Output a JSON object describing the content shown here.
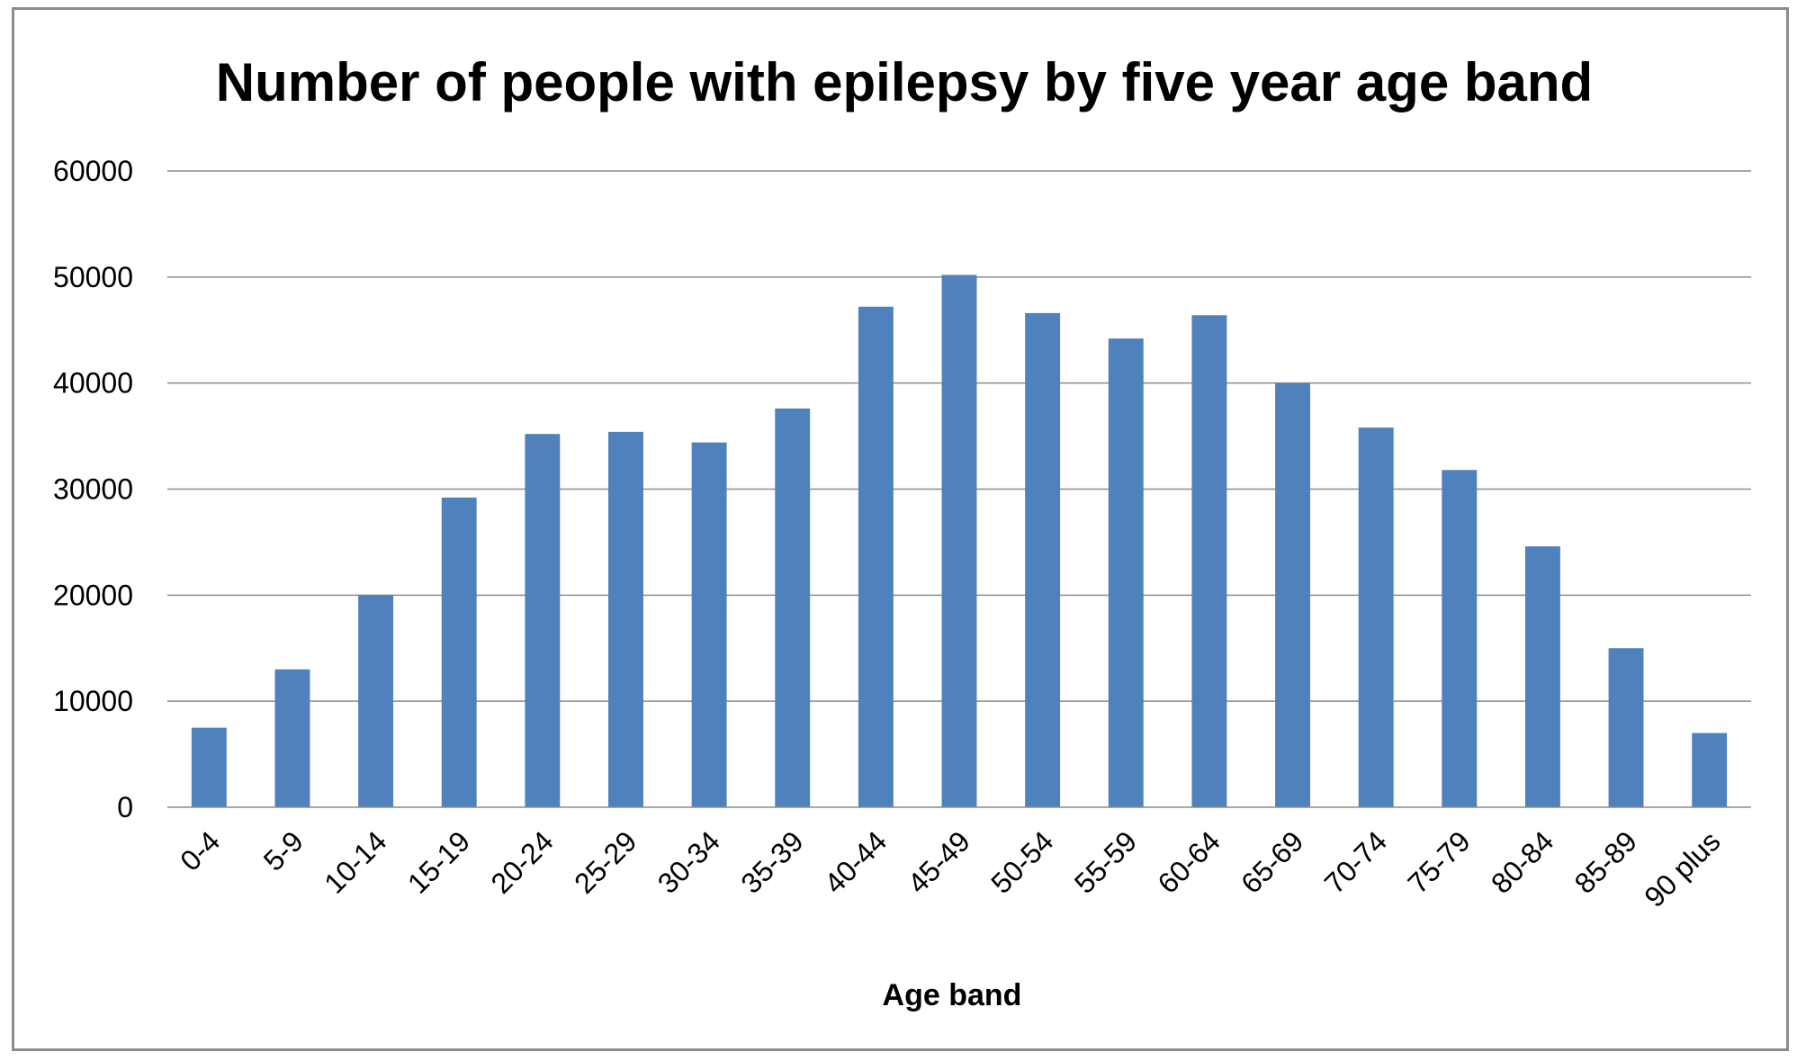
{
  "chart_data": {
    "type": "bar",
    "title": "Number of people with epilepsy by five year age band",
    "xlabel": "Age band",
    "ylabel": "",
    "categories": [
      "0-4",
      "5-9",
      "10-14",
      "15-19",
      "20-24",
      "25-29",
      "30-34",
      "35-39",
      "40-44",
      "45-49",
      "50-54",
      "55-59",
      "60-64",
      "65-69",
      "70-74",
      "75-79",
      "80-84",
      "85-89",
      "90 plus"
    ],
    "values": [
      7500,
      13000,
      20000,
      29200,
      35200,
      35400,
      34400,
      37600,
      47200,
      50200,
      46600,
      44200,
      46400,
      40000,
      35800,
      31800,
      24600,
      15000,
      7000
    ],
    "ylim": [
      0,
      60000
    ],
    "yticks": [
      0,
      10000,
      20000,
      30000,
      40000,
      50000,
      60000
    ],
    "bar_color": "#4f81bd",
    "grid": true,
    "legend": "none"
  }
}
